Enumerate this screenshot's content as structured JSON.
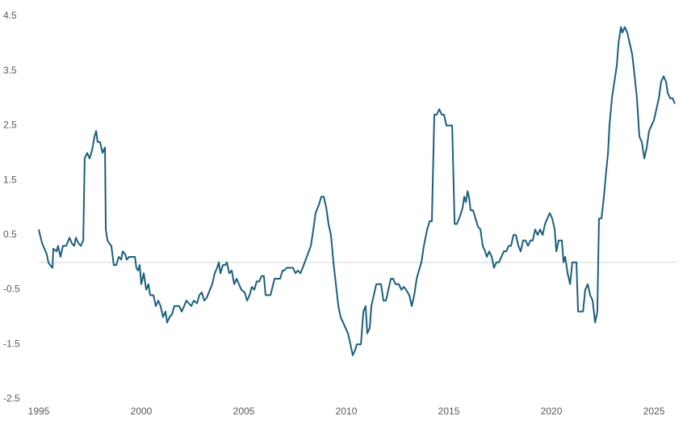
{
  "chart_data": {
    "type": "line",
    "xlim": [
      1995,
      2026.1
    ],
    "xticks": [
      1995,
      2000,
      2005,
      2010,
      2015,
      2020,
      2025
    ],
    "ylim": [
      -2.5,
      4.5
    ],
    "yticks": [
      -2.5,
      -1.5,
      -0.5,
      0.5,
      1.5,
      2.5,
      3.5,
      4.5
    ],
    "series": [
      {
        "color": "#1b5f7c",
        "x": [
          1995.0,
          1995.16,
          1995.39,
          1995.47,
          1995.55,
          1995.67,
          1995.71,
          1995.87,
          1995.94,
          1996.06,
          1996.18,
          1996.34,
          1996.5,
          1996.61,
          1996.73,
          1996.81,
          1996.93,
          1997.05,
          1997.17,
          1997.24,
          1997.36,
          1997.48,
          1997.6,
          1997.72,
          1997.8,
          1997.87,
          1997.99,
          1998.11,
          1998.23,
          1998.27,
          1998.35,
          1998.43,
          1998.54,
          1998.66,
          1998.78,
          1998.9,
          1999.02,
          1999.09,
          1999.21,
          1999.29,
          1999.41,
          1999.69,
          1999.76,
          1999.84,
          1999.92,
          2000.0,
          2000.12,
          2000.24,
          2000.35,
          2000.43,
          2000.59,
          2000.71,
          2000.83,
          2000.94,
          2001.06,
          2001.18,
          2001.26,
          2001.38,
          2001.5,
          2001.61,
          2001.85,
          2001.97,
          2002.09,
          2002.2,
          2002.32,
          2002.44,
          2002.56,
          2002.72,
          2002.83,
          2002.95,
          2003.07,
          2003.19,
          2003.35,
          2003.46,
          2003.58,
          2003.7,
          2003.78,
          2003.86,
          2003.98,
          2004.09,
          2004.17,
          2004.29,
          2004.41,
          2004.53,
          2004.65,
          2004.76,
          2004.88,
          2005.04,
          2005.16,
          2005.28,
          2005.39,
          2005.51,
          2005.63,
          2005.75,
          2005.87,
          2005.98,
          2006.06,
          2006.3,
          2006.5,
          2006.77,
          2006.89,
          2006.97,
          2007.09,
          2007.28,
          2007.4,
          2007.52,
          2007.64,
          2007.76,
          2007.87,
          2008.07,
          2008.27,
          2008.39,
          2008.5,
          2008.66,
          2008.78,
          2008.9,
          2009.02,
          2009.13,
          2009.25,
          2009.37,
          2009.49,
          2009.61,
          2009.72,
          2009.84,
          2009.96,
          2010.08,
          2010.2,
          2010.31,
          2010.43,
          2010.51,
          2010.71,
          2010.83,
          2010.94,
          2011.02,
          2011.14,
          2011.22,
          2011.34,
          2011.46,
          2011.69,
          2011.81,
          2011.93,
          2012.05,
          2012.17,
          2012.28,
          2012.4,
          2012.56,
          2012.68,
          2012.8,
          2012.91,
          2013.07,
          2013.19,
          2013.31,
          2013.43,
          2013.54,
          2013.66,
          2013.78,
          2013.94,
          2014.06,
          2014.17,
          2014.29,
          2014.41,
          2014.53,
          2014.65,
          2014.76,
          2014.88,
          2015.16,
          2015.28,
          2015.39,
          2015.55,
          2015.67,
          2015.75,
          2015.83,
          2015.91,
          2015.98,
          2016.06,
          2016.18,
          2016.3,
          2016.42,
          2016.54,
          2016.65,
          2016.77,
          2016.85,
          2016.97,
          2017.09,
          2017.2,
          2017.32,
          2017.44,
          2017.56,
          2017.68,
          2017.8,
          2017.91,
          2018.03,
          2018.15,
          2018.27,
          2018.39,
          2018.5,
          2018.62,
          2018.74,
          2018.86,
          2018.98,
          2019.09,
          2019.21,
          2019.33,
          2019.45,
          2019.57,
          2019.69,
          2019.8,
          2019.92,
          2020.04,
          2020.16,
          2020.24,
          2020.35,
          2020.51,
          2020.59,
          2020.67,
          2020.79,
          2020.91,
          2021.02,
          2021.22,
          2021.3,
          2021.54,
          2021.65,
          2021.77,
          2021.89,
          2022.01,
          2022.13,
          2022.24,
          2022.32,
          2022.44,
          2022.56,
          2022.68,
          2022.76,
          2022.83,
          2022.95,
          2023.07,
          2023.19,
          2023.27,
          2023.39,
          2023.46,
          2023.58,
          2023.7,
          2023.82,
          2023.94,
          2024.06,
          2024.17,
          2024.29,
          2024.41,
          2024.53,
          2024.65,
          2024.76,
          2024.88,
          2025.0,
          2025.12,
          2025.24,
          2025.35,
          2025.47,
          2025.59,
          2025.67,
          2025.79,
          2025.91,
          2026.02
        ],
        "values": [
          0.6,
          0.35,
          0.15,
          0.0,
          -0.05,
          -0.1,
          0.25,
          0.2,
          0.3,
          0.1,
          0.3,
          0.3,
          0.45,
          0.35,
          0.3,
          0.45,
          0.35,
          0.3,
          0.4,
          1.9,
          2.0,
          1.9,
          2.05,
          2.3,
          2.4,
          2.2,
          2.2,
          2.0,
          2.1,
          0.6,
          0.4,
          0.35,
          0.3,
          -0.05,
          -0.05,
          0.1,
          0.05,
          0.2,
          0.15,
          0.05,
          0.1,
          0.1,
          -0.1,
          -0.15,
          -0.05,
          -0.4,
          -0.2,
          -0.5,
          -0.4,
          -0.6,
          -0.6,
          -0.8,
          -0.7,
          -0.8,
          -1.0,
          -0.9,
          -1.1,
          -1.0,
          -0.95,
          -0.8,
          -0.8,
          -0.9,
          -0.8,
          -0.7,
          -0.75,
          -0.8,
          -0.7,
          -0.75,
          -0.6,
          -0.55,
          -0.7,
          -0.65,
          -0.5,
          -0.4,
          -0.2,
          -0.1,
          0.0,
          -0.2,
          -0.05,
          -0.05,
          0.0,
          -0.2,
          -0.15,
          -0.4,
          -0.3,
          -0.4,
          -0.5,
          -0.55,
          -0.7,
          -0.6,
          -0.45,
          -0.5,
          -0.35,
          -0.35,
          -0.25,
          -0.25,
          -0.6,
          -0.6,
          -0.3,
          -0.3,
          -0.15,
          -0.15,
          -0.1,
          -0.1,
          -0.1,
          -0.2,
          -0.15,
          -0.2,
          -0.1,
          0.1,
          0.3,
          0.6,
          0.9,
          1.05,
          1.2,
          1.2,
          1.0,
          0.7,
          0.5,
          0.0,
          -0.4,
          -0.8,
          -1.0,
          -1.1,
          -1.2,
          -1.3,
          -1.5,
          -1.7,
          -1.6,
          -1.5,
          -1.5,
          -0.9,
          -0.8,
          -1.3,
          -1.2,
          -0.8,
          -0.6,
          -0.4,
          -0.4,
          -0.7,
          -0.7,
          -0.5,
          -0.3,
          -0.3,
          -0.4,
          -0.4,
          -0.5,
          -0.45,
          -0.5,
          -0.6,
          -0.8,
          -0.6,
          -0.3,
          -0.15,
          0.0,
          0.3,
          0.6,
          0.75,
          0.75,
          2.7,
          2.7,
          2.8,
          2.7,
          2.7,
          2.5,
          2.5,
          0.7,
          0.7,
          0.85,
          1.0,
          1.2,
          1.1,
          1.3,
          1.2,
          0.95,
          0.95,
          0.8,
          0.65,
          0.6,
          0.3,
          0.2,
          0.1,
          0.2,
          0.1,
          -0.1,
          0.0,
          0.0,
          0.1,
          0.2,
          0.2,
          0.3,
          0.3,
          0.5,
          0.5,
          0.3,
          0.2,
          0.4,
          0.4,
          0.3,
          0.4,
          0.4,
          0.6,
          0.5,
          0.6,
          0.5,
          0.7,
          0.8,
          0.9,
          0.8,
          0.6,
          0.2,
          0.4,
          0.4,
          0.0,
          0.1,
          -0.2,
          -0.4,
          0.0,
          0.0,
          -0.9,
          -0.9,
          -0.5,
          -0.4,
          -0.6,
          -0.7,
          -1.1,
          -0.9,
          0.8,
          0.8,
          1.2,
          1.7,
          2.0,
          2.5,
          3.0,
          3.3,
          3.6,
          4.0,
          4.3,
          4.2,
          4.3,
          4.2,
          4.0,
          3.8,
          3.4,
          3.0,
          2.3,
          2.2,
          1.9,
          2.1,
          2.4,
          2.5,
          2.6,
          2.8,
          3.0,
          3.3,
          3.4,
          3.3,
          3.1,
          3.0,
          3.0,
          2.9
        ]
      }
    ]
  }
}
